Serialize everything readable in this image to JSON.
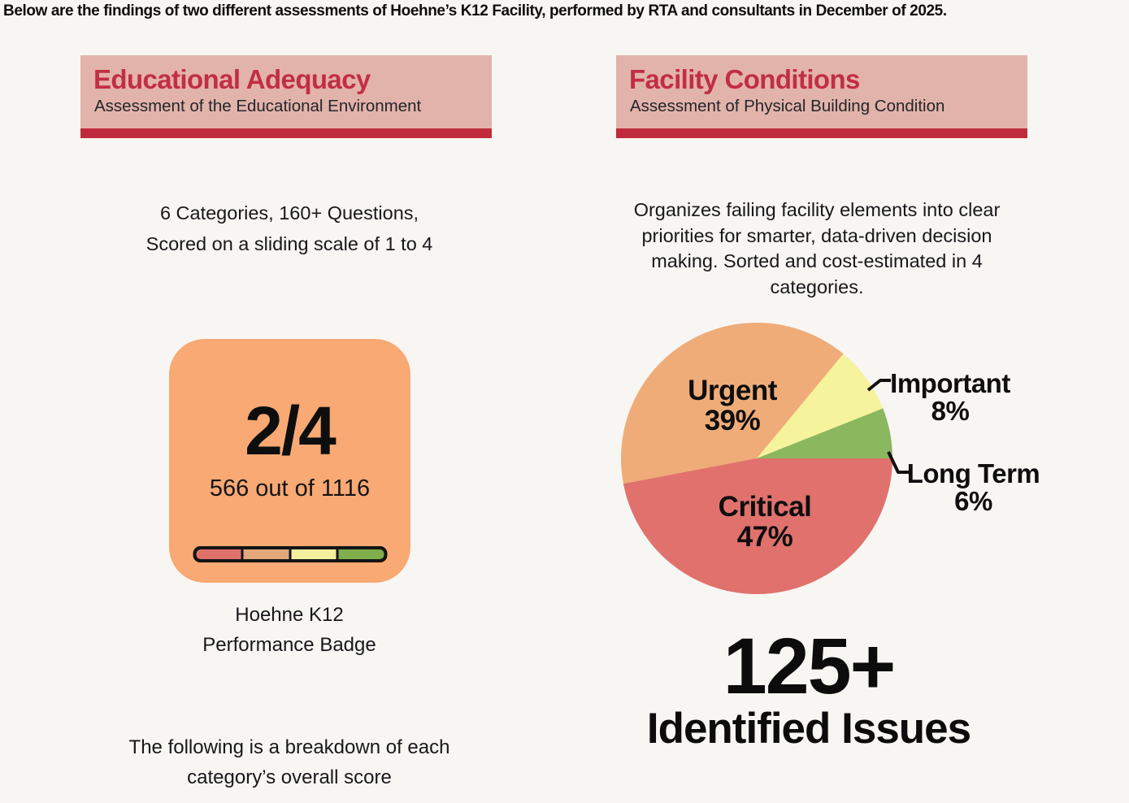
{
  "intro": "Below are the findings of two different assessments of Hoehne’s K12 Facility, performed by RTA and consultants in December of 2025.",
  "left": {
    "title": "Educational Adequacy",
    "subtitle": "Assessment of the Educational Environment",
    "method_lines": [
      "6 Categories, 160+ Questions,",
      "Scored on a sliding scale of 1 to 4"
    ],
    "badge": {
      "score": "2/4",
      "detail": "566 out of 1116",
      "caption_lines": [
        "Hoehne K12",
        "Performance Badge"
      ],
      "scale_colors": [
        "#e0716a",
        "#e2a87a",
        "#f5f0a0",
        "#7fae4a"
      ],
      "background": "#f8a974"
    },
    "footer_lines": [
      "The following is a breakdown of each",
      "category’s overall score"
    ]
  },
  "right": {
    "title": "Facility Conditions",
    "subtitle": "Assessment of Physical Building Condition",
    "desc_lines": [
      "Organizes failing facility elements into clear",
      "priorities for smarter, data-driven decision",
      "making. Sorted and cost-estimated in 4",
      "categories."
    ],
    "stat_number": "125+",
    "stat_label": "Identified Issues"
  },
  "chart_data": {
    "type": "pie",
    "slices": [
      {
        "label": "Critical",
        "value": 47,
        "pct_label": "47%",
        "color": "#e0716d",
        "label_placement": "inside"
      },
      {
        "label": "Urgent",
        "value": 39,
        "pct_label": "39%",
        "color": "#efac79",
        "label_placement": "inside"
      },
      {
        "label": "Important",
        "value": 8,
        "pct_label": "8%",
        "color": "#f5f39b",
        "label_placement": "outside-right-callout"
      },
      {
        "label": "Long Term",
        "value": 6,
        "pct_label": "6%",
        "color": "#8bb75f",
        "label_placement": "outside-right-callout"
      }
    ],
    "total": 100,
    "layout": "drawn clockwise starting at 3 o'clock; no legend; callout leader lines to outside labels"
  },
  "theme": {
    "page_bg": "#f8f6f3",
    "header_bg": "#e2b3aa",
    "header_title_color": "#c22e44",
    "header_underline_color": "#c02b3b",
    "text_color": "#17181a"
  }
}
